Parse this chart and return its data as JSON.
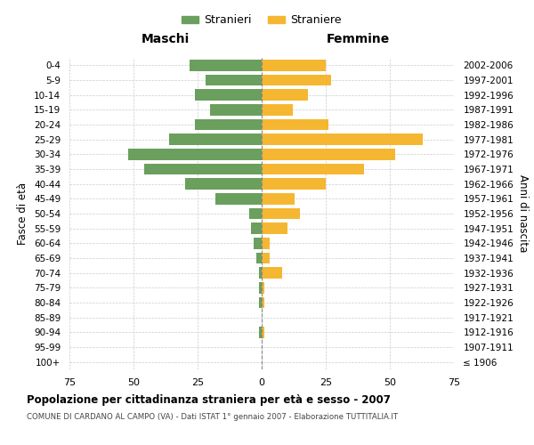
{
  "age_groups": [
    "100+",
    "95-99",
    "90-94",
    "85-89",
    "80-84",
    "75-79",
    "70-74",
    "65-69",
    "60-64",
    "55-59",
    "50-54",
    "45-49",
    "40-44",
    "35-39",
    "30-34",
    "25-29",
    "20-24",
    "15-19",
    "10-14",
    "5-9",
    "0-4"
  ],
  "birth_years": [
    "≤ 1906",
    "1907-1911",
    "1912-1916",
    "1917-1921",
    "1922-1926",
    "1927-1931",
    "1932-1936",
    "1937-1941",
    "1942-1946",
    "1947-1951",
    "1952-1956",
    "1957-1961",
    "1962-1966",
    "1967-1971",
    "1972-1976",
    "1977-1981",
    "1982-1986",
    "1987-1991",
    "1992-1996",
    "1997-2001",
    "2002-2006"
  ],
  "males": [
    0,
    0,
    1,
    0,
    1,
    1,
    1,
    2,
    3,
    4,
    5,
    18,
    30,
    46,
    52,
    36,
    26,
    20,
    26,
    22,
    28
  ],
  "females": [
    0,
    0,
    1,
    0,
    1,
    1,
    8,
    3,
    3,
    10,
    15,
    13,
    25,
    40,
    52,
    63,
    26,
    12,
    18,
    27,
    25
  ],
  "male_color": "#6a9f5e",
  "female_color": "#f5b731",
  "background_color": "#ffffff",
  "grid_color": "#cccccc",
  "title": "Popolazione per cittadinanza straniera per età e sesso - 2007",
  "subtitle": "COMUNE DI CARDANO AL CAMPO (VA) - Dati ISTAT 1° gennaio 2007 - Elaborazione TUTTITALIA.IT",
  "xlabel_left": "Maschi",
  "xlabel_right": "Femmine",
  "ylabel_left": "Fasce di età",
  "ylabel_right": "Anni di nascita",
  "xlim": 75,
  "legend_stranieri": "Stranieri",
  "legend_straniere": "Straniere"
}
